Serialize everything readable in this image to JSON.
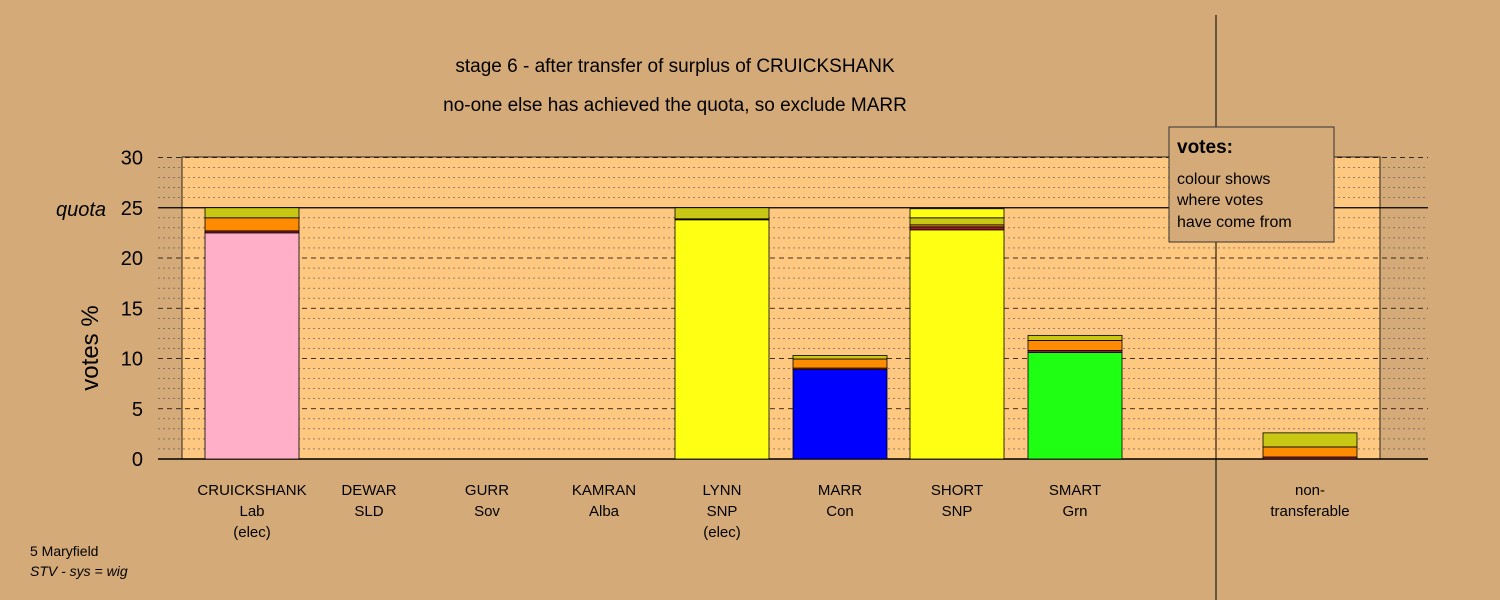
{
  "chart_data": {
    "type": "bar",
    "stacked": true,
    "title": "stage 6 - after transfer of surplus of CRUICKSHANK",
    "subtitle": "no-one else has achieved the quota, so exclude MARR",
    "ylabel": "votes %",
    "ylim": [
      0,
      30
    ],
    "yticks": [
      0,
      5,
      10,
      15,
      20,
      25,
      30
    ],
    "quota": 25,
    "quota_label": "quota",
    "grid": true,
    "categories": [
      {
        "name": "CRUICKSHANK",
        "party": "Lab",
        "status": "(elec)"
      },
      {
        "name": "DEWAR",
        "party": "SLD",
        "status": ""
      },
      {
        "name": "GURR",
        "party": "Sov",
        "status": ""
      },
      {
        "name": "KAMRAN",
        "party": "Alba",
        "status": ""
      },
      {
        "name": "LYNN",
        "party": "SNP",
        "status": "(elec)"
      },
      {
        "name": "MARR",
        "party": "Con",
        "status": ""
      },
      {
        "name": "SHORT",
        "party": "SNP",
        "status": ""
      },
      {
        "name": "SMART",
        "party": "Grn",
        "status": ""
      },
      {
        "name": "non-",
        "party": "transferable",
        "status": ""
      }
    ],
    "stacks": [
      [
        {
          "color": "#ffb0c8",
          "value": 22.5
        },
        {
          "color": "#9b1b30",
          "value": 0.2
        },
        {
          "color": "#ff8c00",
          "value": 1.3
        },
        {
          "color": "#c8c814",
          "value": 1.0
        }
      ],
      [],
      [],
      [],
      [
        {
          "color": "#ffff14",
          "value": 23.8
        },
        {
          "color": "#9b1b30",
          "value": 0.1
        },
        {
          "color": "#c8c814",
          "value": 1.1
        }
      ],
      [
        {
          "color": "#0000ff",
          "value": 8.9
        },
        {
          "color": "#9b1b30",
          "value": 0.15
        },
        {
          "color": "#ff8c00",
          "value": 0.9
        },
        {
          "color": "#c8c814",
          "value": 0.35
        }
      ],
      [
        {
          "color": "#ffff14",
          "value": 22.8
        },
        {
          "color": "#9b1b30",
          "value": 0.3
        },
        {
          "color": "#ff8c00",
          "value": 0.2
        },
        {
          "color": "#c8c814",
          "value": 0.7
        },
        {
          "color": "#ffff14",
          "value": 0.9
        }
      ],
      [
        {
          "color": "#1eff14",
          "value": 10.6
        },
        {
          "color": "#9b1b30",
          "value": 0.2
        },
        {
          "color": "#ff8c00",
          "value": 1.0
        },
        {
          "color": "#c8c814",
          "value": 0.5
        }
      ],
      [
        {
          "color": "#9b1b30",
          "value": 0.2
        },
        {
          "color": "#ff8c00",
          "value": 1.0
        },
        {
          "color": "#c8c814",
          "value": 1.4
        }
      ]
    ],
    "legend": {
      "title": "votes:",
      "lines": [
        "colour shows",
        "where votes",
        "have come from"
      ]
    },
    "footer": {
      "line1": "5 Maryfield",
      "line2": "STV - sys = wig"
    },
    "colors": {
      "background": "#d4aa78",
      "plot_area": "#ffc880"
    }
  }
}
